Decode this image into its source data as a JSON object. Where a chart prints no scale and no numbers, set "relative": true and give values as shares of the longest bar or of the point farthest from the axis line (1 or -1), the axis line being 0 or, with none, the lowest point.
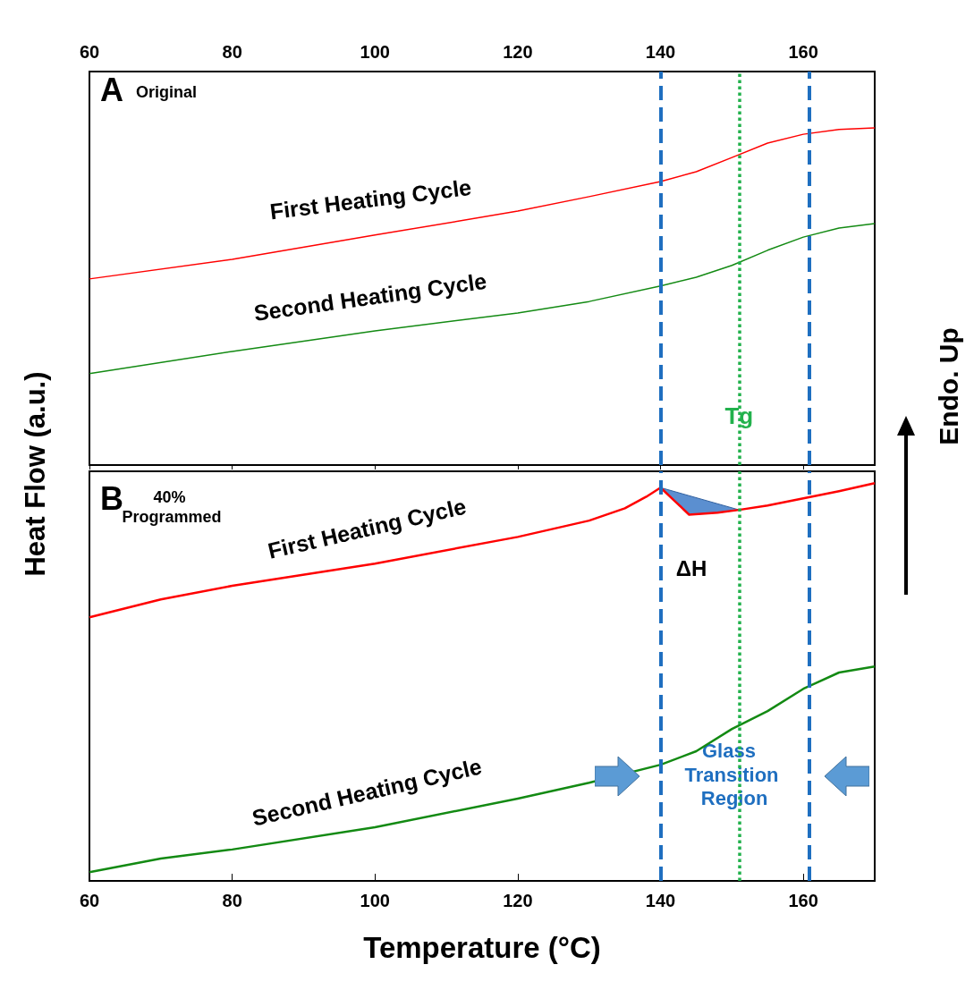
{
  "chart_data": [
    {
      "type": "line",
      "relative": true,
      "marker": "none",
      "xlim": [
        60,
        170
      ],
      "xticks": [
        60,
        80,
        100,
        120,
        140,
        160
      ],
      "ylabel": "Heat Flow (a.u.)",
      "annotations": [
        "A",
        "Original",
        "Endo. Up"
      ],
      "ref_lines": [
        {
          "axis": "x",
          "value": 140,
          "color": "#1f6fc0",
          "line_style": "dashed"
        },
        {
          "axis": "x",
          "value": 160.8,
          "color": "#1f6fc0",
          "line_style": "dashed"
        },
        {
          "axis": "x",
          "value": 151,
          "label": "Tg",
          "color": "#22b14c",
          "line_style": "dotted"
        }
      ],
      "series": [
        {
          "name": "First Heating Cycle",
          "color": "#ff0000",
          "x": [
            60,
            80,
            100,
            120,
            130,
            140,
            145,
            150,
            155,
            160,
            165,
            170
          ],
          "values": [
            0.552,
            0.61,
            0.682,
            0.753,
            0.796,
            0.841,
            0.87,
            0.912,
            0.955,
            0.981,
            0.995,
            1
          ]
        },
        {
          "name": "Second Heating Cycle",
          "color": "#138a13",
          "x": [
            60,
            80,
            100,
            120,
            130,
            140,
            145,
            150,
            155,
            160,
            165,
            170
          ],
          "values": [
            0.271,
            0.337,
            0.398,
            0.451,
            0.485,
            0.531,
            0.557,
            0.592,
            0.637,
            0.676,
            0.703,
            0.716
          ]
        }
      ]
    },
    {
      "type": "line",
      "relative": true,
      "marker": "none",
      "xlim": [
        60,
        170
      ],
      "xticks": [
        60,
        80,
        100,
        120,
        140,
        160
      ],
      "xlabel": "Temperature (°C)",
      "annotations": [
        "B",
        "40% Programmed",
        "ΔH",
        "Glass Transition Region"
      ],
      "ref_lines": [
        {
          "axis": "x",
          "value": 140,
          "color": "#1f6fc0",
          "line_style": "dashed"
        },
        {
          "axis": "x",
          "value": 160.8,
          "color": "#1f6fc0",
          "line_style": "dashed"
        },
        {
          "axis": "x",
          "value": 151,
          "color": "#22b14c",
          "line_style": "dotted"
        }
      ],
      "series": [
        {
          "name": "First Heating Cycle",
          "color": "#ff0000",
          "x": [
            60,
            70,
            80,
            100,
            120,
            130,
            135,
            138,
            140,
            142,
            144,
            148,
            151,
            155,
            160,
            165,
            170
          ],
          "values": [
            0.663,
            0.708,
            0.742,
            0.798,
            0.865,
            0.906,
            0.937,
            0.966,
            0.989,
            0.955,
            0.921,
            0.926,
            0.933,
            0.944,
            0.962,
            0.98,
            1
          ]
        },
        {
          "name": "Second Heating Cycle",
          "color": "#138a13",
          "x": [
            60,
            70,
            80,
            100,
            120,
            130,
            140,
            145,
            150,
            155,
            160,
            165,
            170
          ],
          "values": [
            0.022,
            0.056,
            0.079,
            0.135,
            0.207,
            0.247,
            0.292,
            0.326,
            0.382,
            0.427,
            0.483,
            0.524,
            0.539
          ]
        }
      ]
    }
  ]
}
